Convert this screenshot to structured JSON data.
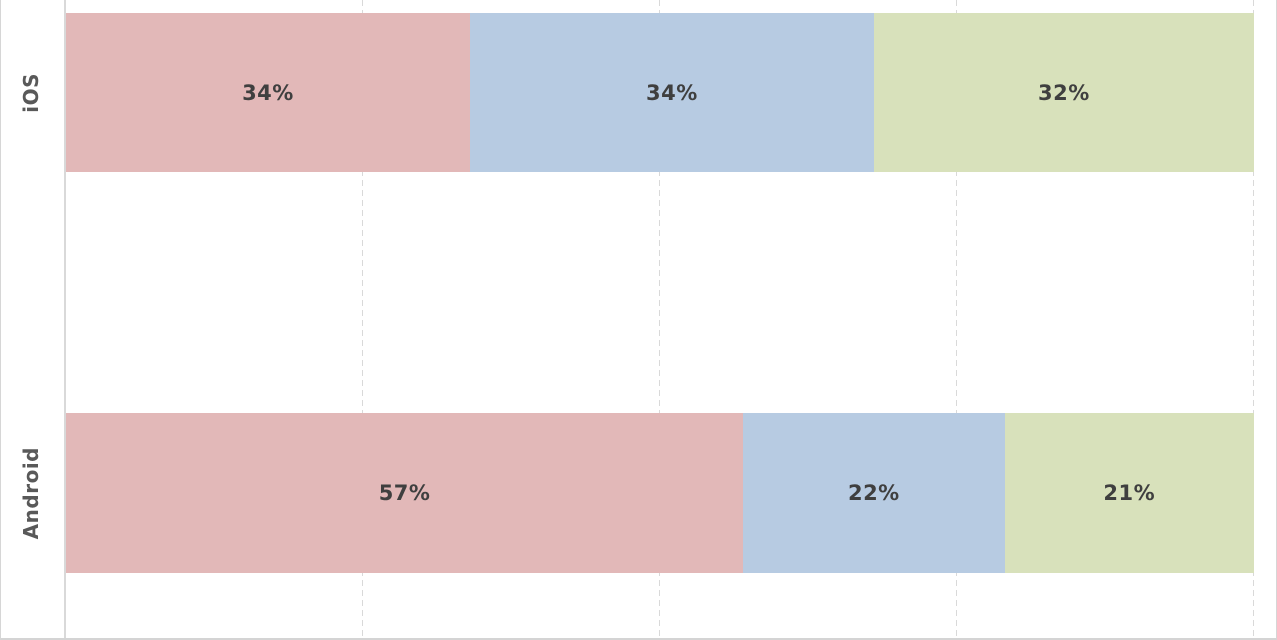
{
  "chart_data": {
    "type": "bar",
    "orientation": "horizontal",
    "stacked": true,
    "title": "",
    "legend": "none",
    "grid": "dashed-vertical",
    "xlim": [
      0,
      100
    ],
    "gridlines_percent": [
      25,
      50,
      75,
      100
    ],
    "categories": [
      "iOS",
      "Android"
    ],
    "series": [
      {
        "name": "segment-1",
        "color": "#e2b8b8",
        "values": [
          34,
          57
        ]
      },
      {
        "name": "segment-2",
        "color": "#b7cbe2",
        "values": [
          34,
          22
        ]
      },
      {
        "name": "segment-3",
        "color": "#d8e1bb",
        "values": [
          32,
          21
        ]
      }
    ],
    "data_labels": [
      [
        "34%",
        "34%",
        "32%"
      ],
      [
        "57%",
        "22%",
        "21%"
      ]
    ]
  },
  "colors": {
    "background": "#ffffff",
    "gridline": "#d9d9d9",
    "axis_line": "#d9d9d9",
    "chart_border": "#d6d6d6",
    "data_label_text": "#3f3f3f",
    "category_label_text": "#595959"
  }
}
